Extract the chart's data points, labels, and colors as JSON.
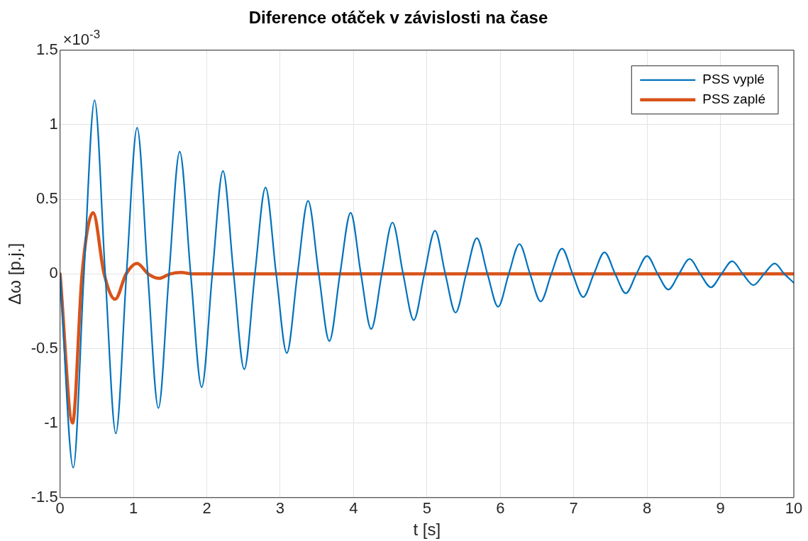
{
  "chart_data": {
    "type": "line",
    "title": "Diference otáček v závislosti na čase",
    "xlabel": "t [s]",
    "ylabel": "Δω [p.j.]",
    "annotations": [
      "×10$^{-3}$"
    ],
    "xlim": [
      0,
      10
    ],
    "xticks": [
      0,
      1,
      2,
      3,
      4,
      5,
      6,
      7,
      8,
      9,
      10
    ],
    "ylim": [
      -1.5,
      1.5
    ],
    "yticks": [
      -1.5,
      -1,
      -0.5,
      0,
      0.5,
      1,
      1.5
    ],
    "grid": true,
    "legend": "top right",
    "marker": "none",
    "line_style": "solid",
    "series": [
      {
        "name": "PSS vyplé",
        "color": "#0072bd",
        "x": [
          0,
          0.18,
          0.325,
          0.47,
          0.615,
          0.76,
          0.905,
          1.05,
          1.195,
          1.34,
          1.485,
          1.63,
          1.78,
          1.93,
          2.075,
          2.22,
          2.365,
          2.51,
          2.655,
          2.8,
          2.945,
          3.09,
          3.235,
          3.38,
          3.525,
          3.67,
          3.815,
          3.96,
          4.1,
          4.24,
          4.385,
          4.53,
          4.675,
          4.82,
          4.965,
          5.11,
          5.25,
          5.39,
          5.535,
          5.68,
          5.825,
          5.97,
          6.115,
          6.26,
          6.405,
          6.55,
          6.695,
          6.84,
          6.985,
          7.13,
          7.275,
          7.42,
          7.565,
          7.71,
          7.855,
          8,
          8.145,
          8.29,
          8.435,
          8.58,
          8.725,
          8.87,
          9.015,
          9.16,
          9.305,
          9.45,
          9.595,
          9.74,
          9.87,
          10
        ],
        "values": [
          0,
          -1.3,
          0,
          1.165,
          0,
          -1.07,
          0,
          0.98,
          0,
          -0.9,
          0,
          0.82,
          0,
          -0.76,
          0,
          0.69,
          0,
          -0.64,
          0,
          0.58,
          0,
          -0.53,
          0,
          0.49,
          0,
          -0.45,
          0,
          0.41,
          0,
          -0.37,
          0,
          0.345,
          0,
          -0.31,
          0,
          0.29,
          0,
          -0.26,
          0,
          0.24,
          0,
          -0.22,
          0,
          0.2,
          0,
          -0.185,
          0,
          0.17,
          0,
          -0.155,
          0,
          0.145,
          0,
          -0.13,
          0,
          0.12,
          0,
          -0.105,
          0,
          0.1,
          0,
          -0.09,
          0,
          0.085,
          0,
          -0.075,
          0,
          0.07,
          0,
          -0.06
        ]
      },
      {
        "name": "PSS zaplé",
        "color": "#d95319",
        "x": [
          0,
          0.17,
          0.3,
          0.45,
          0.6,
          0.75,
          0.9,
          1.05,
          1.2,
          1.35,
          1.5,
          1.65,
          1.8,
          2,
          3,
          4,
          5,
          6,
          7,
          8,
          9,
          10
        ],
        "values": [
          0,
          -1,
          0,
          0.41,
          0,
          -0.17,
          0,
          0.07,
          0,
          -0.03,
          0,
          0.01,
          0,
          0,
          0,
          0,
          0,
          0,
          0,
          0,
          0,
          0
        ]
      }
    ]
  }
}
